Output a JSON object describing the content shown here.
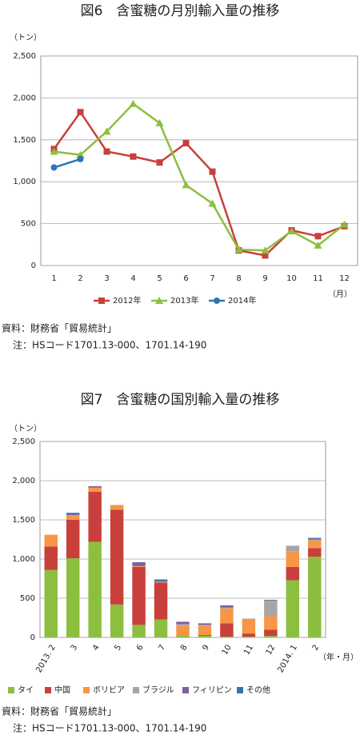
{
  "chart_data": [
    {
      "type": "line",
      "title": "図6　含蜜糖の月別輸入量の推移",
      "y_label": "（トン）",
      "x_label": "（月）",
      "categories": [
        "1",
        "2",
        "3",
        "4",
        "5",
        "6",
        "7",
        "8",
        "9",
        "10",
        "11",
        "12"
      ],
      "series": [
        {
          "name": "2012年",
          "color": "#c8403c",
          "marker": "square",
          "values": [
            1390,
            1830,
            1360,
            1300,
            1230,
            1460,
            1120,
            180,
            120,
            420,
            350,
            470
          ]
        },
        {
          "name": "2013年",
          "color": "#8cbf3f",
          "marker": "triangle",
          "values": [
            1360,
            1320,
            1600,
            1930,
            1700,
            960,
            740,
            190,
            180,
            410,
            240,
            490
          ]
        },
        {
          "name": "2014年",
          "color": "#2e75b6",
          "marker": "circle",
          "values": [
            1170,
            1270,
            null,
            null,
            null,
            null,
            null,
            null,
            null,
            null,
            null,
            null
          ]
        }
      ],
      "ylim": [
        0,
        2500
      ],
      "yticks": [
        0,
        500,
        {
          "value": 1000,
          "label": "1,000"
        },
        {
          "value": 1500,
          "label": "1,500"
        },
        {
          "value": 2000,
          "label": "2,000"
        },
        {
          "value": 2500,
          "label": "2,500"
        }
      ],
      "grid": true,
      "legend": "bottom",
      "source": "資料：財務省「貿易統計」",
      "note": "注：HSコード1701.13-000、1701.14-190"
    },
    {
      "type": "stacked_bar",
      "title": "図7　含蜜糖の国別輸入量の推移",
      "y_label": "（トン）",
      "x_label": "（年・月）",
      "categories": [
        "2013. 2",
        "3",
        "4",
        "5",
        "6",
        "7",
        "8",
        "9",
        "10",
        "11",
        "12",
        "2014. 1",
        "2"
      ],
      "series": [
        {
          "name": "タイ",
          "color": "#8cbf3f",
          "values": [
            860,
            1010,
            1220,
            420,
            160,
            230,
            20,
            20,
            10,
            10,
            20,
            730,
            1030
          ]
        },
        {
          "name": "中国",
          "color": "#c8403c",
          "values": [
            300,
            490,
            640,
            1210,
            740,
            470,
            0,
            10,
            170,
            40,
            80,
            170,
            110
          ]
        },
        {
          "name": "ボリビア",
          "color": "#f79646",
          "values": [
            150,
            60,
            50,
            60,
            10,
            10,
            130,
            120,
            190,
            180,
            170,
            200,
            100
          ]
        },
        {
          "name": "ブラジル",
          "color": "#a6a6a6",
          "values": [
            0,
            0,
            0,
            0,
            0,
            0,
            20,
            10,
            10,
            10,
            200,
            70,
            10
          ]
        },
        {
          "name": "フィリピン",
          "color": "#7f5fa0",
          "values": [
            0,
            10,
            20,
            0,
            50,
            10,
            30,
            20,
            30,
            0,
            10,
            0,
            10
          ]
        },
        {
          "name": "その他",
          "color": "#2e75b6",
          "values": [
            0,
            20,
            0,
            0,
            0,
            20,
            0,
            0,
            0,
            0,
            0,
            0,
            10
          ]
        }
      ],
      "ylim": [
        0,
        2500
      ],
      "yticks": [
        0,
        500,
        {
          "value": 1000,
          "label": "1,000"
        },
        {
          "value": 1500,
          "label": "1,500"
        },
        {
          "value": 2000,
          "label": "2,000"
        },
        {
          "value": 2500,
          "label": "2,500"
        }
      ],
      "grid": true,
      "legend": "bottom",
      "source": "資料：財務省「貿易統計」",
      "note": "注：HSコード1701.13-000、1701.14-190"
    }
  ]
}
